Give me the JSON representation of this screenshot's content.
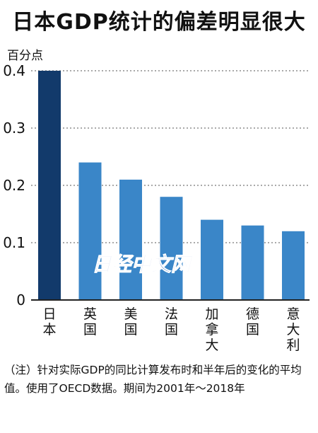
{
  "title": "日本GDP统计的偏差明显很大",
  "unit": "百分点",
  "watermark": "日经中文网",
  "note": "（注）针对实际GDP的同比计算发布时和半年后的变化的平均值。使用了OECD数据。期间为2001年～2018年",
  "colors": {
    "highlight": "#123a6b",
    "bar": "#3a86c8",
    "grid": "#555555",
    "axis": "#222222"
  },
  "chart_data": {
    "type": "bar",
    "title": "日本GDP统计的偏差明显很大",
    "ylabel": "百分点",
    "xlabel": "",
    "categories": [
      "日本",
      "英国",
      "美国",
      "法国",
      "加拿大",
      "德国",
      "意大利"
    ],
    "values": [
      0.4,
      0.24,
      0.21,
      0.18,
      0.14,
      0.13,
      0.12
    ],
    "highlight_category": "日本",
    "ylim": [
      0,
      0.4
    ],
    "yticks": [
      "0",
      "0.1",
      "0.2",
      "0.3",
      "0.4"
    ],
    "grid": true
  }
}
